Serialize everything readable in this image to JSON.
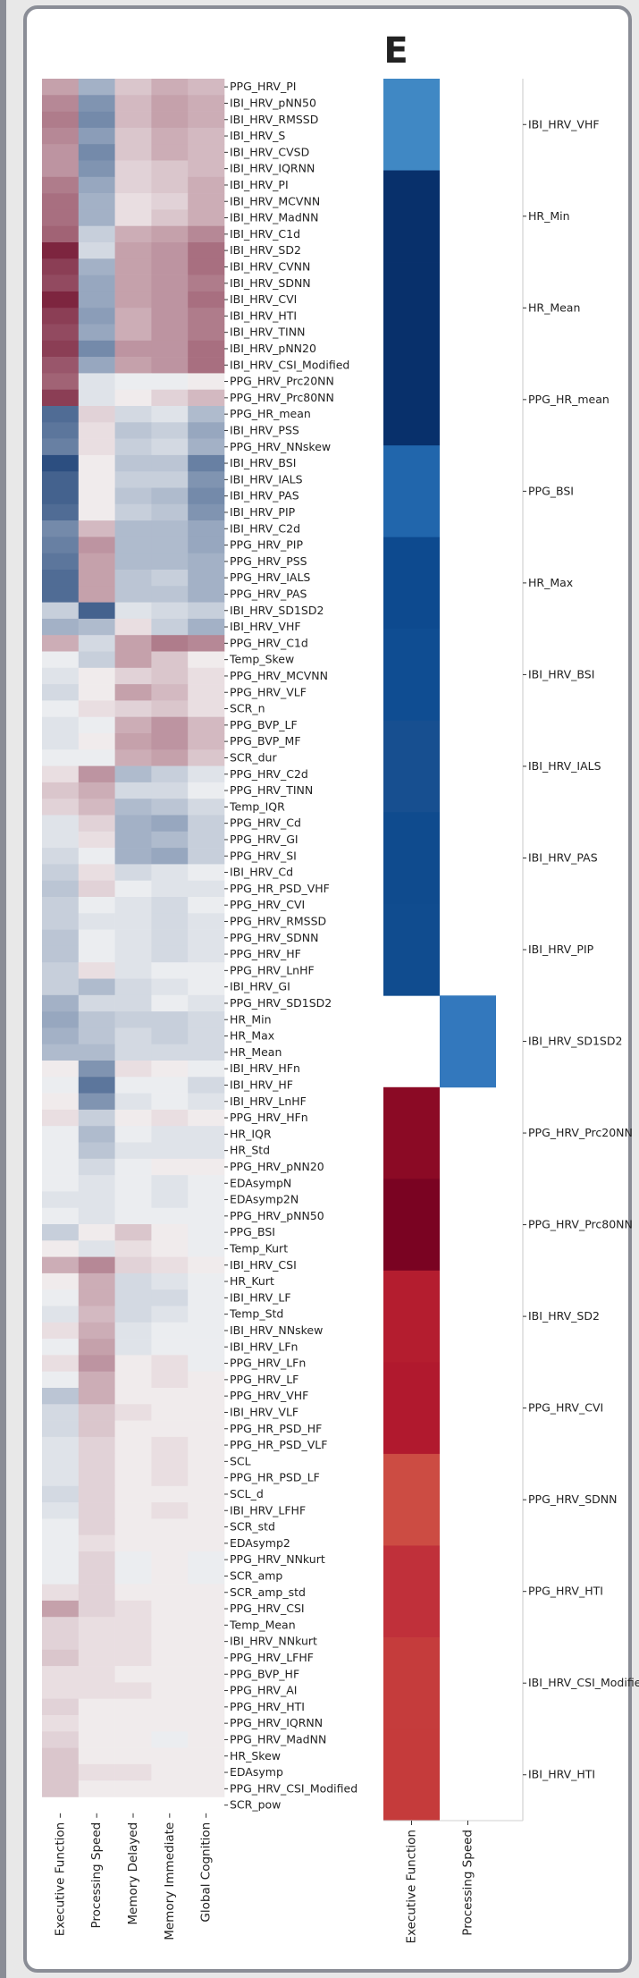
{
  "panel_label": "E",
  "chart_data": [
    {
      "type": "heatmap",
      "xlabels": [
        "Executive Function",
        "Processing Speed",
        "Memory Delayed",
        "Memory Immediate",
        "Global Cognition"
      ],
      "ylabels": [
        "PPG_HRV_PI",
        "IBI_HRV_pNN50",
        "IBI_HRV_RMSSD",
        "IBI_HRV_S",
        "IBI_HRV_CVSD",
        "IBI_HRV_IQRNN",
        "IBI_HRV_PI",
        "IBI_HRV_MCVNN",
        "IBI_HRV_MadNN",
        "IBI_HRV_C1d",
        "IBI_HRV_SD2",
        "IBI_HRV_CVNN",
        "IBI_HRV_SDNN",
        "IBI_HRV_CVI",
        "IBI_HRV_HTI",
        "IBI_HRV_TINN",
        "IBI_HRV_pNN20",
        "IBI_HRV_CSI_Modified",
        "PPG_HRV_Prc20NN",
        "PPG_HRV_Prc80NN",
        "PPG_HR_mean",
        "IBI_HRV_PSS",
        "PPG_HRV_NNskew",
        "IBI_HRV_BSI",
        "IBI_HRV_IALS",
        "IBI_HRV_PAS",
        "IBI_HRV_PIP",
        "IBI_HRV_C2d",
        "PPG_HRV_PIP",
        "PPG_HRV_PSS",
        "PPG_HRV_IALS",
        "PPG_HRV_PAS",
        "IBI_HRV_SD1SD2",
        "IBI_HRV_VHF",
        "PPG_HRV_C1d",
        "Temp_Skew",
        "PPG_HRV_MCVNN",
        "PPG_HRV_VLF",
        "SCR_n",
        "PPG_BVP_LF",
        "PPG_BVP_MF",
        "SCR_dur",
        "PPG_HRV_C2d",
        "PPG_HRV_TINN",
        "Temp_IQR",
        "PPG_HRV_Cd",
        "PPG_HRV_GI",
        "PPG_HRV_SI",
        "IBI_HRV_Cd",
        "PPG_HR_PSD_VHF",
        "PPG_HRV_CVI",
        "PPG_HRV_RMSSD",
        "PPG_HRV_SDNN",
        "PPG_HRV_HF",
        "PPG_HRV_LnHF",
        "IBI_HRV_GI",
        "PPG_HRV_SD1SD2",
        "HR_Min",
        "HR_Max",
        "HR_Mean",
        "IBI_HRV_HFn",
        "IBI_HRV_HF",
        "IBI_HRV_LnHF",
        "PPG_HRV_HFn",
        "HR_IQR",
        "HR_Std",
        "PPG_HRV_pNN20",
        "EDAsympN",
        "EDAsymp2N",
        "PPG_HRV_pNN50",
        "PPG_BSI",
        "Temp_Kurt",
        "IBI_HRV_CSI",
        "HR_Kurt",
        "IBI_HRV_LF",
        "Temp_Std",
        "IBI_HRV_NNskew",
        "IBI_HRV_LFn",
        "PPG_HRV_LFn",
        "PPG_HRV_LF",
        "PPG_HRV_VHF",
        "IBI_HRV_VLF",
        "PPG_HR_PSD_HF",
        "PPG_HR_PSD_VLF",
        "SCL",
        "PPG_HR_PSD_LF",
        "SCL_d",
        "IBI_HRV_LFHF",
        "SCR_std",
        "EDAsymp2",
        "PPG_HRV_NNkurt",
        "SCR_amp",
        "SCR_amp_std",
        "PPG_HRV_CSI",
        "Temp_Mean",
        "IBI_HRV_NNkurt",
        "PPG_HRV_LFHF",
        "PPG_BVP_HF",
        "PPG_HRV_AI",
        "PPG_HRV_HTI",
        "PPG_HRV_IQRNN",
        "PPG_HRV_MadNN",
        "HR_Skew",
        "EDAsymp",
        "PPG_HRV_CSI_Modified",
        "SCR_pow"
      ],
      "values": [
        [
          0.35,
          -0.35,
          0.2,
          0.3,
          0.25
        ],
        [
          0.45,
          -0.5,
          0.25,
          0.35,
          0.3
        ],
        [
          0.5,
          -0.55,
          0.25,
          0.35,
          0.3
        ],
        [
          0.45,
          -0.45,
          0.2,
          0.3,
          0.25
        ],
        [
          0.4,
          -0.55,
          0.2,
          0.3,
          0.25
        ],
        [
          0.4,
          -0.5,
          0.15,
          0.2,
          0.25
        ],
        [
          0.5,
          -0.4,
          0.15,
          0.2,
          0.3
        ],
        [
          0.55,
          -0.35,
          0.1,
          0.15,
          0.3
        ],
        [
          0.55,
          -0.35,
          0.1,
          0.2,
          0.3
        ],
        [
          0.6,
          -0.2,
          0.3,
          0.35,
          0.45
        ],
        [
          0.85,
          -0.15,
          0.35,
          0.4,
          0.55
        ],
        [
          0.75,
          -0.35,
          0.35,
          0.4,
          0.55
        ],
        [
          0.7,
          -0.4,
          0.35,
          0.4,
          0.5
        ],
        [
          0.85,
          -0.4,
          0.35,
          0.4,
          0.55
        ],
        [
          0.75,
          -0.45,
          0.3,
          0.4,
          0.5
        ],
        [
          0.7,
          -0.4,
          0.3,
          0.4,
          0.5
        ],
        [
          0.75,
          -0.55,
          0.4,
          0.4,
          0.55
        ],
        [
          0.65,
          -0.4,
          0.35,
          0.4,
          0.55
        ],
        [
          0.6,
          -0.1,
          -0.05,
          -0.05,
          0.05
        ],
        [
          0.75,
          -0.1,
          0.05,
          0.15,
          0.25
        ],
        [
          -0.7,
          0.15,
          -0.15,
          -0.1,
          -0.3
        ],
        [
          -0.65,
          0.1,
          -0.25,
          -0.2,
          -0.4
        ],
        [
          -0.6,
          0.1,
          -0.2,
          -0.15,
          -0.35
        ],
        [
          -0.85,
          0.05,
          -0.25,
          -0.25,
          -0.6
        ],
        [
          -0.75,
          0.05,
          -0.2,
          -0.2,
          -0.5
        ],
        [
          -0.75,
          0.05,
          -0.25,
          -0.3,
          -0.55
        ],
        [
          -0.7,
          0.05,
          -0.2,
          -0.25,
          -0.5
        ],
        [
          -0.55,
          0.25,
          -0.3,
          -0.3,
          -0.4
        ],
        [
          -0.6,
          0.4,
          -0.3,
          -0.3,
          -0.4
        ],
        [
          -0.65,
          0.35,
          -0.3,
          -0.3,
          -0.35
        ],
        [
          -0.7,
          0.35,
          -0.25,
          -0.2,
          -0.35
        ],
        [
          -0.7,
          0.35,
          -0.25,
          -0.25,
          -0.35
        ],
        [
          -0.2,
          -0.75,
          -0.1,
          -0.15,
          -0.2
        ],
        [
          -0.35,
          -0.3,
          0.1,
          -0.2,
          -0.35
        ],
        [
          0.3,
          -0.15,
          0.35,
          0.5,
          0.45
        ],
        [
          -0.05,
          -0.2,
          0.35,
          0.2,
          0.05
        ],
        [
          -0.1,
          0.05,
          0.15,
          0.2,
          0.1
        ],
        [
          -0.15,
          0.05,
          0.35,
          0.25,
          0.1
        ],
        [
          -0.05,
          0.1,
          0.15,
          0.2,
          0.1
        ],
        [
          -0.1,
          -0.05,
          0.3,
          0.4,
          0.25
        ],
        [
          -0.1,
          0.05,
          0.35,
          0.4,
          0.25
        ],
        [
          -0.05,
          -0.05,
          0.3,
          0.35,
          0.2
        ],
        [
          0.1,
          0.4,
          -0.3,
          -0.2,
          -0.1
        ],
        [
          0.2,
          0.3,
          -0.15,
          -0.15,
          -0.05
        ],
        [
          0.15,
          0.25,
          -0.3,
          -0.25,
          -0.15
        ],
        [
          -0.1,
          0.15,
          -0.35,
          -0.4,
          -0.2
        ],
        [
          -0.1,
          0.1,
          -0.35,
          -0.3,
          -0.2
        ],
        [
          -0.15,
          -0.05,
          -0.35,
          -0.4,
          -0.2
        ],
        [
          -0.2,
          0.1,
          -0.15,
          -0.1,
          -0.05
        ],
        [
          -0.25,
          0.15,
          -0.05,
          -0.1,
          -0.1
        ],
        [
          -0.2,
          -0.05,
          -0.1,
          -0.15,
          -0.05
        ],
        [
          -0.2,
          -0.1,
          -0.1,
          -0.15,
          -0.1
        ],
        [
          -0.25,
          -0.05,
          -0.1,
          -0.15,
          -0.1
        ],
        [
          -0.25,
          -0.05,
          -0.1,
          -0.15,
          -0.1
        ],
        [
          -0.2,
          0.1,
          -0.1,
          -0.05,
          -0.05
        ],
        [
          -0.2,
          -0.3,
          -0.15,
          -0.1,
          -0.05
        ],
        [
          -0.35,
          -0.15,
          -0.15,
          -0.05,
          -0.1
        ],
        [
          -0.4,
          -0.25,
          -0.2,
          -0.2,
          -0.15
        ],
        [
          -0.35,
          -0.25,
          -0.15,
          -0.2,
          -0.15
        ],
        [
          -0.3,
          -0.3,
          -0.15,
          -0.15,
          -0.15
        ],
        [
          0.05,
          -0.5,
          0.1,
          0.05,
          -0.05
        ],
        [
          -0.05,
          -0.65,
          -0.05,
          -0.05,
          -0.15
        ],
        [
          0.05,
          -0.5,
          -0.1,
          -0.05,
          -0.1
        ],
        [
          0.1,
          -0.2,
          0.05,
          0.1,
          0.05
        ],
        [
          -0.05,
          -0.3,
          -0.05,
          -0.1,
          -0.1
        ],
        [
          -0.05,
          -0.25,
          -0.1,
          -0.1,
          -0.1
        ],
        [
          -0.05,
          -0.15,
          -0.05,
          0.05,
          0.05
        ],
        [
          -0.05,
          -0.1,
          -0.05,
          -0.1,
          -0.05
        ],
        [
          -0.1,
          -0.1,
          -0.05,
          -0.1,
          -0.05
        ],
        [
          -0.05,
          -0.1,
          -0.05,
          -0.05,
          -0.05
        ],
        [
          -0.2,
          0.05,
          0.2,
          0.05,
          -0.05
        ],
        [
          0.05,
          -0.1,
          0.1,
          0.05,
          -0.05
        ],
        [
          0.3,
          0.45,
          0.15,
          0.1,
          0.05
        ],
        [
          0.05,
          0.3,
          -0.15,
          -0.1,
          -0.05
        ],
        [
          -0.05,
          0.3,
          -0.15,
          -0.15,
          -0.05
        ],
        [
          -0.1,
          0.25,
          -0.15,
          -0.1,
          -0.05
        ],
        [
          0.1,
          0.3,
          -0.1,
          -0.05,
          -0.05
        ],
        [
          -0.05,
          0.35,
          -0.1,
          -0.05,
          -0.05
        ],
        [
          0.1,
          0.4,
          0.05,
          0.1,
          -0.05
        ],
        [
          -0.05,
          0.3,
          0.05,
          0.1,
          0.05
        ],
        [
          -0.25,
          0.3,
          0.05,
          0.05,
          0.05
        ],
        [
          -0.15,
          0.2,
          0.1,
          0.05,
          0.05
        ],
        [
          -0.15,
          0.2,
          0.05,
          0.05,
          0.05
        ],
        [
          -0.1,
          0.15,
          0.05,
          0.1,
          0.05
        ],
        [
          -0.1,
          0.15,
          0.05,
          0.1,
          0.05
        ],
        [
          -0.1,
          0.15,
          0.05,
          0.1,
          0.05
        ],
        [
          -0.15,
          0.15,
          0.05,
          0.05,
          0.05
        ],
        [
          -0.1,
          0.15,
          0.05,
          0.1,
          0.05
        ],
        [
          -0.05,
          0.15,
          0.05,
          0.05,
          0.05
        ],
        [
          -0.05,
          0.1,
          0.05,
          0.05,
          0.05
        ],
        [
          -0.05,
          0.15,
          -0.05,
          0.05,
          -0.05
        ],
        [
          -0.05,
          0.15,
          -0.05,
          0.05,
          -0.05
        ],
        [
          0.1,
          0.15,
          0.05,
          0.05,
          0.05
        ],
        [
          0.35,
          0.15,
          0.1,
          0.05,
          0.05
        ],
        [
          0.15,
          0.1,
          0.1,
          0.05,
          0.05
        ],
        [
          0.15,
          0.1,
          0.1,
          0.05,
          0.05
        ],
        [
          0.2,
          0.1,
          0.1,
          0.05,
          0.05
        ],
        [
          0.1,
          0.1,
          0.05,
          0.05,
          0.05
        ],
        [
          0.1,
          0.1,
          0.1,
          0.05,
          0.05
        ],
        [
          0.15,
          0.05,
          0.05,
          0.05,
          0.05
        ],
        [
          0.1,
          0.05,
          0.05,
          0.05,
          0.05
        ],
        [
          0.15,
          0.05,
          0.05,
          -0.05,
          0.05
        ],
        [
          0.2,
          0.05,
          0.05,
          0.05,
          0.05
        ],
        [
          0.2,
          0.1,
          0.1,
          0.05,
          0.05
        ],
        [
          0.2,
          0.05,
          0.05,
          0.05,
          0.05
        ]
      ],
      "color_map": {
        "negative": "#08306b",
        "zero": "#f7f7f7",
        "positive": "#67001f"
      }
    },
    {
      "type": "heatmap",
      "xlabels": [
        "Executive Function",
        "Processing Speed"
      ],
      "ylabels": [
        "IBI_HRV_VHF",
        "HR_Min",
        "HR_Mean",
        "PPG_HR_mean",
        "PPG_BSI",
        "HR_Max",
        "IBI_HRV_BSI",
        "IBI_HRV_IALS",
        "IBI_HRV_PAS",
        "IBI_HRV_PIP",
        "IBI_HRV_SD1SD2",
        "PPG_HRV_Prc20NN",
        "PPG_HRV_Prc80NN",
        "IBI_HRV_SD2",
        "PPG_HRV_CVI",
        "PPG_HRV_SDNN",
        "PPG_HRV_HTI",
        "IBI_HRV_CSI_Modified",
        "IBI_HRV_HTI"
      ],
      "blocks": [
        {
          "feature": "IBI_HRV_VHF",
          "column": "Executive Function",
          "color": "#4088c4"
        },
        {
          "feature": "HR_Min",
          "column": "Executive Function",
          "color": "#08306b"
        },
        {
          "feature": "HR_Mean",
          "column": "Executive Function",
          "color": "#08306b"
        },
        {
          "feature": "PPG_HR_mean",
          "column": "Executive Function",
          "color": "#08306b"
        },
        {
          "feature": "PPG_BSI",
          "column": "Executive Function",
          "color": "#2166ac"
        },
        {
          "feature": "HR_Max",
          "column": "Executive Function",
          "color": "#0d4a8f"
        },
        {
          "feature": "IBI_HRV_BSI",
          "column": "Executive Function",
          "color": "#0f4d92"
        },
        {
          "feature": "IBI_HRV_IALS",
          "column": "Executive Function",
          "color": "#174f90"
        },
        {
          "feature": "IBI_HRV_PAS",
          "column": "Executive Function",
          "color": "#0f4b8e"
        },
        {
          "feature": "IBI_HRV_PIP",
          "column": "Executive Function",
          "color": "#104c8f"
        },
        {
          "feature": "IBI_HRV_SD1SD2",
          "column": "Processing Speed",
          "color": "#3378bd"
        },
        {
          "feature": "PPG_HRV_Prc20NN",
          "column": "Executive Function",
          "color": "#8b0a25"
        },
        {
          "feature": "PPG_HRV_Prc80NN",
          "column": "Executive Function",
          "color": "#7a0322"
        },
        {
          "feature": "IBI_HRV_SD2",
          "column": "Executive Function",
          "color": "#b41d2f"
        },
        {
          "feature": "PPG_HRV_CVI",
          "column": "Executive Function",
          "color": "#b1192e"
        },
        {
          "feature": "PPG_HRV_SDNN",
          "column": "Executive Function",
          "color": "#cc4c43"
        },
        {
          "feature": "PPG_HRV_HTI",
          "column": "Executive Function",
          "color": "#c0303a"
        },
        {
          "feature": "IBI_HRV_CSI_Modified",
          "column": "Executive Function",
          "color": "#c53c3c"
        },
        {
          "feature": "IBI_HRV_HTI",
          "column": "Executive Function",
          "color": "#c53b3b"
        }
      ]
    }
  ]
}
